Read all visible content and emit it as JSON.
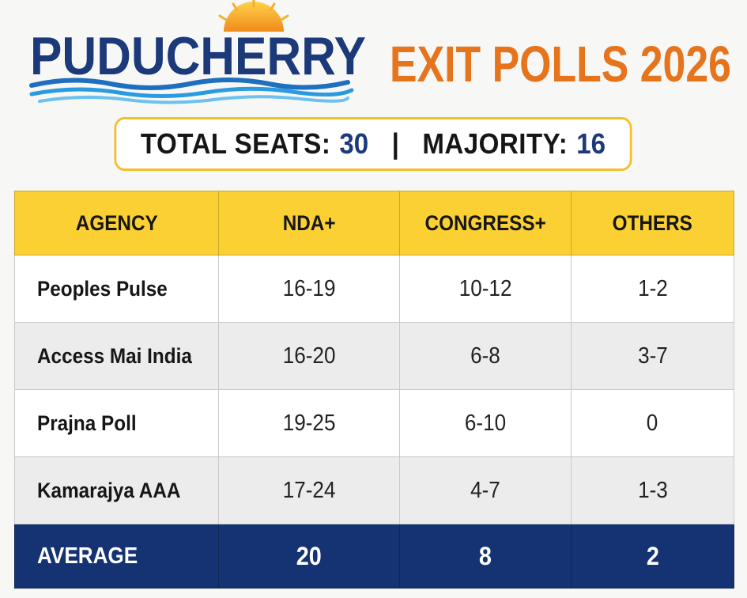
{
  "header": {
    "brand": "PUDUCHERRY",
    "title": "EXIT POLLS 2026",
    "colors": {
      "brand": "#1c3a7a",
      "title": "#e5741c",
      "sun": "#f3a81e",
      "wave": "#2a8fd6"
    }
  },
  "summary": {
    "total_label": "TOTAL SEATS:",
    "total_value": "30",
    "separator": "|",
    "majority_label": "MAJORITY:",
    "majority_value": "16"
  },
  "table": {
    "columns": [
      "AGENCY",
      "NDA+",
      "CONGRESS+",
      "OTHERS"
    ],
    "rows": [
      [
        "Peoples Pulse",
        "16-19",
        "10-12",
        "1-2"
      ],
      [
        "Access Mai India",
        "16-20",
        "6-8",
        "3-7"
      ],
      [
        "Prajna Poll",
        "19-25",
        "6-10",
        "0"
      ],
      [
        "Kamarajya AAA",
        "17-24",
        "4-7",
        "1-3"
      ]
    ],
    "average": [
      "AVERAGE",
      "20",
      "8",
      "2"
    ],
    "colors": {
      "header_bg": "#fbd033",
      "average_bg": "#153372",
      "stripe": "#ececec"
    }
  },
  "chart_data": {
    "type": "table",
    "title": "EXIT POLLS 2026",
    "columns": [
      "AGENCY",
      "NDA+",
      "CONGRESS+",
      "OTHERS"
    ],
    "rows": [
      {
        "agency": "Peoples Pulse",
        "NDA+": "16-19",
        "CONGRESS+": "10-12",
        "OTHERS": "1-2"
      },
      {
        "agency": "Access Mai India",
        "NDA+": "16-20",
        "CONGRESS+": "6-8",
        "OTHERS": "3-7"
      },
      {
        "agency": "Prajna Poll",
        "NDA+": "19-25",
        "CONGRESS+": "6-10",
        "OTHERS": "0"
      },
      {
        "agency": "Kamarajya AAA",
        "NDA+": "17-24",
        "CONGRESS+": "4-7",
        "OTHERS": "1-3"
      }
    ],
    "average": {
      "NDA+": 20,
      "CONGRESS+": 8,
      "OTHERS": 2
    },
    "total_seats": 30,
    "majority": 16
  }
}
